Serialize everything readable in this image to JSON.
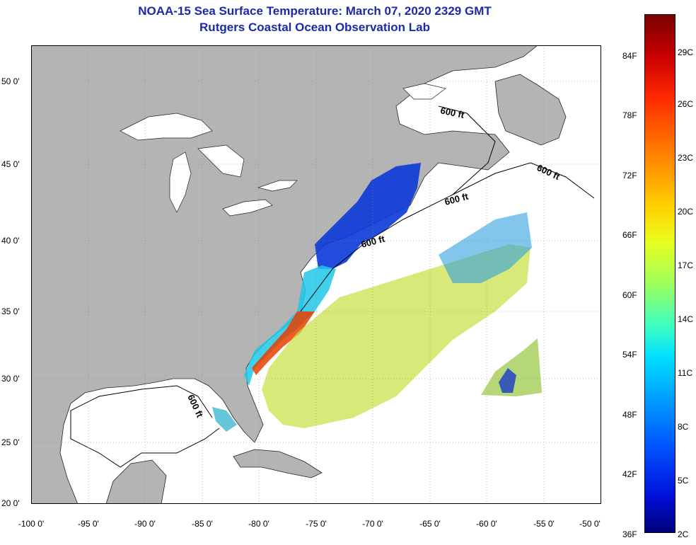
{
  "title_line1": "NOAA-15 Sea Surface Temperature:  March 07, 2020 2329 GMT",
  "title_line2": "Rutgers Coastal Ocean Observation Lab",
  "lat_labels": [
    "50 0'",
    "45 0'",
    "40 0'",
    "35 0'",
    "30 0'",
    "25 0'",
    "20 0'"
  ],
  "lon_labels": [
    "-100 0'",
    "-95 0'",
    "-90 0'",
    "-85 0'",
    "-80 0'",
    "-75 0'",
    "-70 0'",
    "-65 0'",
    "-60 0'",
    "-55 0'",
    "-50 0'"
  ],
  "contour_label": "600 ft",
  "colorbar": {
    "fahrenheit": [
      "84F",
      "78F",
      "72F",
      "66F",
      "60F",
      "54F",
      "48F",
      "42F",
      "36F"
    ],
    "celsius": [
      "29C",
      "26C",
      "23C",
      "20C",
      "17C",
      "14C",
      "11C",
      "8C",
      "5C",
      "2C"
    ]
  },
  "colors": {
    "title": "#1c2aa8",
    "land": "#b4b4b4",
    "ocean": "#ffffff"
  }
}
